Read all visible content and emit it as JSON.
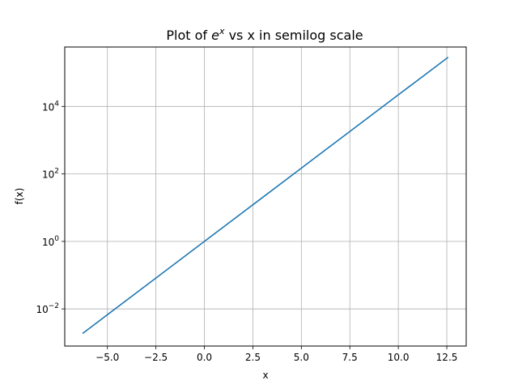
{
  "chart_data": {
    "type": "line",
    "title_prefix": "Plot of ",
    "title_base": "e",
    "title_exp": "x",
    "title_suffix": " vs x in semilog scale",
    "xlabel": "x",
    "ylabel": "f(x)",
    "y_scale": "log",
    "xlim": [
      -7.2,
      13.5
    ],
    "ylim_log10": [
      -3.1,
      5.76
    ],
    "grid": true,
    "line_color": "#1f77b4",
    "grid_color": "#b0b0b0",
    "x_ticks": [
      {
        "value": -5.0,
        "label": "−5.0"
      },
      {
        "value": -2.5,
        "label": "−2.5"
      },
      {
        "value": 0.0,
        "label": "0.0"
      },
      {
        "value": 2.5,
        "label": "2.5"
      },
      {
        "value": 5.0,
        "label": "5.0"
      },
      {
        "value": 7.5,
        "label": "7.5"
      },
      {
        "value": 10.0,
        "label": "10.0"
      },
      {
        "value": 12.5,
        "label": "12.5"
      }
    ],
    "y_ticks": [
      {
        "value": 0.01,
        "base": "10",
        "exp": "−2"
      },
      {
        "value": 1,
        "base": "10",
        "exp": "0"
      },
      {
        "value": 100,
        "base": "10",
        "exp": "2"
      },
      {
        "value": 10000,
        "base": "10",
        "exp": "4"
      }
    ],
    "series": [
      {
        "x": [
          -6.28,
          -5,
          -2.5,
          0,
          2.5,
          5,
          7.5,
          10,
          12.57
        ],
        "y": [
          0.00187,
          0.00674,
          0.0821,
          1,
          12.18,
          148.4,
          1808,
          22026,
          286751
        ]
      }
    ]
  }
}
